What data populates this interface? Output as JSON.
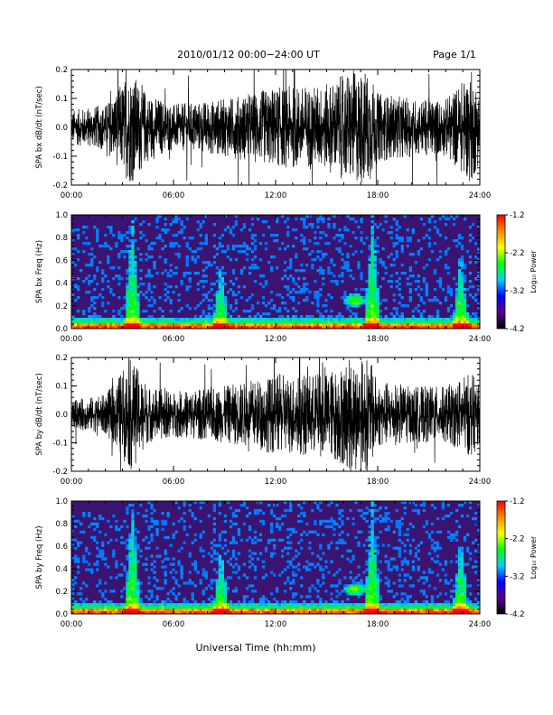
{
  "header": {
    "title": "2010/01/12  00:00−24:00 UT",
    "page": "Page 1/1"
  },
  "footer": {
    "xlabel": "Universal Time (hh:mm)"
  },
  "colors": {
    "trace": "#000000",
    "spectrogram_background": "#3a1470",
    "colorbar_stops": [
      "#000000",
      "#5a0090",
      "#0000ff",
      "#00d0ff",
      "#00ff00",
      "#ffff00",
      "#ff8800",
      "#ff0000"
    ]
  },
  "chart_data": [
    {
      "type": "line",
      "ylabel": "SPA bx dB/dt (nT/sec)",
      "x_ticks": [
        "00:00",
        "06:00",
        "12:00",
        "18:00",
        "24:00"
      ],
      "xlim": [
        0,
        24
      ],
      "ylim": [
        -0.2,
        0.2
      ],
      "y_ticks": [
        "-0.2",
        "-0.1",
        "0.0",
        "0.1",
        "0.2"
      ],
      "amplitude_envelope": {
        "hours": [
          0,
          2,
          3.5,
          4.5,
          6,
          9,
          12,
          15,
          16.5,
          17.5,
          18,
          20,
          22,
          23.5,
          24
        ],
        "amplitude": [
          0.06,
          0.08,
          0.2,
          0.12,
          0.08,
          0.1,
          0.14,
          0.15,
          0.2,
          0.2,
          0.12,
          0.1,
          0.1,
          0.2,
          0.12
        ]
      }
    },
    {
      "type": "heatmap",
      "ylabel": "SPA bx Freq (Hz)",
      "x_ticks": [
        "00:00",
        "06:00",
        "12:00",
        "18:00",
        "24:00"
      ],
      "xlim": [
        0,
        24
      ],
      "ylim": [
        0,
        1
      ],
      "y_ticks": [
        "0.0",
        "0.2",
        "0.4",
        "0.6",
        "0.8",
        "1.0"
      ],
      "colorbar": {
        "label": "Log₁₀ Power",
        "ticks": [
          "-1.2",
          "-2.2",
          "-3.2",
          "-4.2"
        ],
        "range": [
          -4.2,
          -1.2
        ]
      },
      "features": [
        {
          "kind": "vertical_burst",
          "hour": 3.5,
          "max_freq": 1.0
        },
        {
          "kind": "vertical_burst",
          "hour": 8.7,
          "max_freq": 0.6
        },
        {
          "kind": "vertical_burst",
          "hour": 17.6,
          "max_freq": 1.0
        },
        {
          "kind": "vertical_burst",
          "hour": 22.8,
          "max_freq": 0.7
        },
        {
          "kind": "blob",
          "hour": 16.6,
          "freq": 0.25
        }
      ]
    },
    {
      "type": "line",
      "ylabel": "SPA by dB/dt (nT/sec)",
      "x_ticks": [
        "00:00",
        "06:00",
        "12:00",
        "18:00",
        "24:00"
      ],
      "xlim": [
        0,
        24
      ],
      "ylim": [
        -0.2,
        0.2
      ],
      "y_ticks": [
        "-0.2",
        "-0.1",
        "0.0",
        "0.1",
        "0.2"
      ],
      "amplitude_envelope": {
        "hours": [
          0,
          2,
          3.5,
          4.5,
          6,
          9,
          12,
          15,
          16.5,
          17.5,
          18,
          20,
          22,
          23.5,
          24
        ],
        "amplitude": [
          0.05,
          0.07,
          0.2,
          0.1,
          0.08,
          0.1,
          0.14,
          0.15,
          0.2,
          0.2,
          0.12,
          0.1,
          0.1,
          0.15,
          0.1
        ]
      }
    },
    {
      "type": "heatmap",
      "ylabel": "SPA by Freq (Hz)",
      "x_ticks": [
        "00:00",
        "06:00",
        "12:00",
        "18:00",
        "24:00"
      ],
      "xlim": [
        0,
        24
      ],
      "ylim": [
        0,
        1
      ],
      "y_ticks": [
        "0.0",
        "0.2",
        "0.4",
        "0.6",
        "0.8",
        "1.0"
      ],
      "colorbar": {
        "label": "Log₁₀ Power",
        "ticks": [
          "-1.2",
          "-2.2",
          "-3.2",
          "-4.2"
        ],
        "range": [
          -4.2,
          -1.2
        ]
      },
      "features": [
        {
          "kind": "vertical_burst",
          "hour": 3.5,
          "max_freq": 1.0
        },
        {
          "kind": "vertical_burst",
          "hour": 8.7,
          "max_freq": 0.6
        },
        {
          "kind": "vertical_burst",
          "hour": 17.6,
          "max_freq": 1.0
        },
        {
          "kind": "vertical_burst",
          "hour": 22.8,
          "max_freq": 0.7
        },
        {
          "kind": "blob",
          "hour": 16.6,
          "freq": 0.22
        }
      ]
    }
  ]
}
